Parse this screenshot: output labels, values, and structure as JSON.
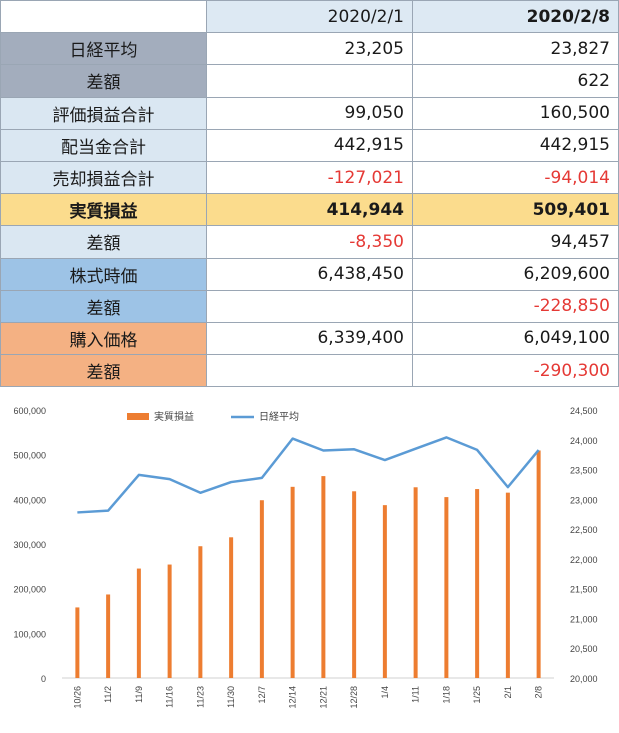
{
  "table": {
    "header": [
      "",
      "2020/2/1",
      "2020/2/8"
    ],
    "rows": [
      {
        "label": "日経平均",
        "v1": "23,205",
        "v2": "23,827",
        "bg": "#a3adbd",
        "bold": false,
        "neg1": false,
        "neg2": false
      },
      {
        "label": "差額",
        "v1": "",
        "v2": "622",
        "bg": "#a3adbd",
        "bold": false,
        "neg1": false,
        "neg2": false
      },
      {
        "label": "評価損益合計",
        "v1": "99,050",
        "v2": "160,500",
        "bg": "#dae7f2",
        "bold": false,
        "neg1": false,
        "neg2": false
      },
      {
        "label": "配当金合計",
        "v1": "442,915",
        "v2": "442,915",
        "bg": "#dae7f2",
        "bold": false,
        "neg1": false,
        "neg2": false
      },
      {
        "label": "売却損益合計",
        "v1": "-127,021",
        "v2": "-94,014",
        "bg": "#dae7f2",
        "bold": false,
        "neg1": true,
        "neg2": true
      },
      {
        "label": "実質損益",
        "v1": "414,944",
        "v2": "509,401",
        "bg": "#fbdc8d",
        "bold": true,
        "neg1": false,
        "neg2": false
      },
      {
        "label": "差額",
        "v1": "-8,350",
        "v2": "94,457",
        "bg": "#dae7f2",
        "bold": false,
        "neg1": true,
        "neg2": false
      },
      {
        "label": "株式時価",
        "v1": "6,438,450",
        "v2": "6,209,600",
        "bg": "#9dc3e6",
        "bold": false,
        "neg1": false,
        "neg2": false
      },
      {
        "label": "差額",
        "v1": "",
        "v2": "-228,850",
        "bg": "#9dc3e6",
        "bold": false,
        "neg1": false,
        "neg2": true
      },
      {
        "label": "購入価格",
        "v1": "6,339,400",
        "v2": "6,049,100",
        "bg": "#f4b183",
        "bold": false,
        "neg1": false,
        "neg2": false
      },
      {
        "label": "差額",
        "v1": "",
        "v2": "-290,300",
        "bg": "#f4b183",
        "bold": false,
        "neg1": false,
        "neg2": true
      }
    ]
  },
  "chart_data": {
    "type": "bar",
    "categories": [
      "10/26",
      "11/2",
      "11/9",
      "11/16",
      "11/23",
      "11/30",
      "12/7",
      "12/14",
      "12/21",
      "12/28",
      "1/4",
      "1/11",
      "1/18",
      "1/25",
      "2/1",
      "2/8"
    ],
    "series": [
      {
        "name": "実質損益",
        "type": "bar",
        "axis": "left",
        "color": "#ed7d31",
        "values": [
          158000,
          187000,
          245000,
          254000,
          295000,
          315000,
          398000,
          428000,
          452000,
          418000,
          387000,
          427000,
          405000,
          423000,
          414944,
          509401
        ]
      },
      {
        "name": "日経平均",
        "type": "line",
        "axis": "right",
        "color": "#5b9bd5",
        "values": [
          22780,
          22810,
          23410,
          23340,
          23110,
          23290,
          23360,
          24020,
          23820,
          23840,
          23660,
          23850,
          24040,
          23830,
          23205,
          23827
        ]
      }
    ],
    "y_left": {
      "min": 0,
      "max": 600000,
      "step": 100000,
      "ticks": [
        "0",
        "100,000",
        "200,000",
        "300,000",
        "400,000",
        "500,000",
        "600,000"
      ]
    },
    "y_right": {
      "min": 20000,
      "max": 24500,
      "step": 500,
      "ticks": [
        "20,000",
        "20,500",
        "21,000",
        "21,500",
        "22,000",
        "22,500",
        "23,000",
        "23,500",
        "24,000",
        "24,500"
      ]
    },
    "legend": {
      "position": "top",
      "items": [
        "実質損益",
        "日経平均"
      ]
    },
    "grid": false
  }
}
